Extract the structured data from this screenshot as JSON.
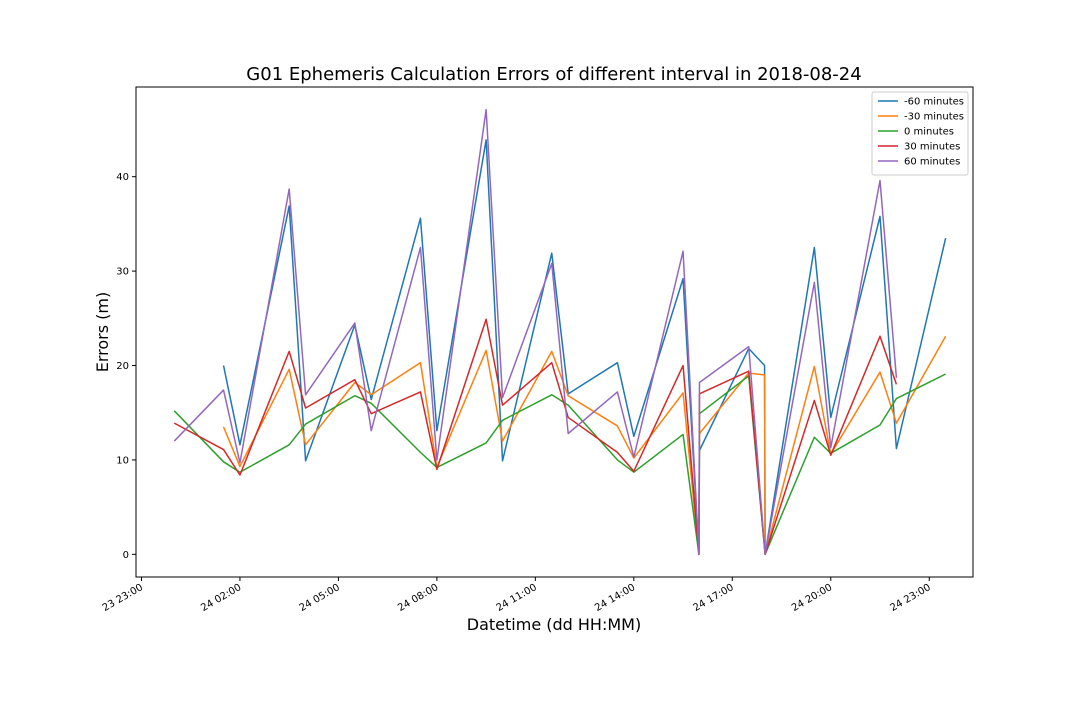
{
  "chart_data": {
    "type": "line",
    "title": "G01 Ephemeris Calculation Errors of different interval in 2018-08-24",
    "xlabel": "Datetime (dd HH:MM)",
    "ylabel": "Errors (m)",
    "x_ticks": [
      "23 23:00",
      "24 02:00",
      "24 05:00",
      "24 08:00",
      "24 11:00",
      "24 14:00",
      "24 17:00",
      "24 20:00",
      "24 23:00"
    ],
    "y_ticks": [
      0,
      10,
      20,
      30,
      40
    ],
    "xlim": [
      "2018-08-23 22:50",
      "2018-08-25 00:20"
    ],
    "ylim": [
      -2.4,
      49.5
    ],
    "grid": false,
    "legend_position": "top-right",
    "series": [
      {
        "name": "-60 minutes",
        "color": "#1f77b4",
        "points": [
          [
            "2018-08-24 01:30",
            20.0
          ],
          [
            "2018-08-24 02:00",
            11.6
          ],
          [
            "2018-08-24 03:30",
            36.9
          ],
          [
            "2018-08-24 04:00",
            9.9
          ],
          [
            "2018-08-24 05:30",
            24.3
          ],
          [
            "2018-08-24 06:00",
            16.4
          ],
          [
            "2018-08-24 07:30",
            35.6
          ],
          [
            "2018-08-24 08:00",
            13.1
          ],
          [
            "2018-08-24 09:30",
            43.9
          ],
          [
            "2018-08-24 10:00",
            9.9
          ],
          [
            "2018-08-24 11:30",
            31.9
          ],
          [
            "2018-08-24 12:00",
            17.0
          ],
          [
            "2018-08-24 13:30",
            20.3
          ],
          [
            "2018-08-24 14:00",
            12.5
          ],
          [
            "2018-08-24 15:30",
            29.2
          ],
          [
            "2018-08-24 15:59",
            0.0
          ],
          [
            "2018-08-24 16:00",
            11.0
          ],
          [
            "2018-08-24 17:30",
            21.8
          ],
          [
            "2018-08-24 17:59",
            20.0
          ],
          [
            "2018-08-24 18:00",
            0.0
          ],
          [
            "2018-08-24 19:30",
            32.5
          ],
          [
            "2018-08-24 20:00",
            14.5
          ],
          [
            "2018-08-24 21:30",
            35.8
          ],
          [
            "2018-08-24 22:00",
            11.2
          ],
          [
            "2018-08-24 23:30",
            33.5
          ]
        ]
      },
      {
        "name": "-30 minutes",
        "color": "#ff7f0e",
        "points": [
          [
            "2018-08-24 01:30",
            13.5
          ],
          [
            "2018-08-24 02:00",
            9.3
          ],
          [
            "2018-08-24 03:30",
            19.6
          ],
          [
            "2018-08-24 04:00",
            11.6
          ],
          [
            "2018-08-24 05:30",
            18.2
          ],
          [
            "2018-08-24 06:00",
            16.9
          ],
          [
            "2018-08-24 07:30",
            20.3
          ],
          [
            "2018-08-24 08:00",
            9.2
          ],
          [
            "2018-08-24 09:30",
            21.6
          ],
          [
            "2018-08-24 10:00",
            12.0
          ],
          [
            "2018-08-24 11:30",
            21.5
          ],
          [
            "2018-08-24 12:00",
            16.8
          ],
          [
            "2018-08-24 13:30",
            13.6
          ],
          [
            "2018-08-24 14:00",
            10.2
          ],
          [
            "2018-08-24 15:30",
            17.1
          ],
          [
            "2018-08-24 15:59",
            0.0
          ],
          [
            "2018-08-24 16:00",
            12.8
          ],
          [
            "2018-08-24 17:30",
            19.2
          ],
          [
            "2018-08-24 17:59",
            19.0
          ],
          [
            "2018-08-24 18:00",
            0.0
          ],
          [
            "2018-08-24 19:30",
            19.9
          ],
          [
            "2018-08-24 20:00",
            10.6
          ],
          [
            "2018-08-24 21:30",
            19.3
          ],
          [
            "2018-08-24 22:00",
            13.9
          ],
          [
            "2018-08-24 23:30",
            23.1
          ]
        ]
      },
      {
        "name": "0 minutes",
        "color": "#2ca02c",
        "points": [
          [
            "2018-08-24 00:00",
            15.2
          ],
          [
            "2018-08-24 01:30",
            9.8
          ],
          [
            "2018-08-24 02:00",
            8.7
          ],
          [
            "2018-08-24 03:30",
            11.6
          ],
          [
            "2018-08-24 04:00",
            13.8
          ],
          [
            "2018-08-24 05:30",
            16.8
          ],
          [
            "2018-08-24 06:00",
            16.0
          ],
          [
            "2018-08-24 07:30",
            10.8
          ],
          [
            "2018-08-24 08:00",
            9.2
          ],
          [
            "2018-08-24 09:30",
            11.8
          ],
          [
            "2018-08-24 10:00",
            14.2
          ],
          [
            "2018-08-24 11:30",
            16.9
          ],
          [
            "2018-08-24 12:00",
            15.8
          ],
          [
            "2018-08-24 13:30",
            10.0
          ],
          [
            "2018-08-24 14:00",
            8.7
          ],
          [
            "2018-08-24 15:30",
            12.7
          ],
          [
            "2018-08-24 15:59",
            0.0
          ],
          [
            "2018-08-24 16:00",
            14.9
          ],
          [
            "2018-08-24 17:30",
            18.9
          ],
          [
            "2018-08-24 18:00",
            0.0
          ],
          [
            "2018-08-24 19:30",
            12.4
          ],
          [
            "2018-08-24 20:00",
            10.7
          ],
          [
            "2018-08-24 21:30",
            13.7
          ],
          [
            "2018-08-24 22:00",
            16.5
          ],
          [
            "2018-08-24 23:30",
            19.1
          ]
        ]
      },
      {
        "name": "30 minutes",
        "color": "#d62728",
        "points": [
          [
            "2018-08-24 00:00",
            13.9
          ],
          [
            "2018-08-24 01:30",
            11.1
          ],
          [
            "2018-08-24 02:00",
            8.4
          ],
          [
            "2018-08-24 03:30",
            21.5
          ],
          [
            "2018-08-24 04:00",
            15.5
          ],
          [
            "2018-08-24 05:30",
            18.5
          ],
          [
            "2018-08-24 06:00",
            14.9
          ],
          [
            "2018-08-24 07:30",
            17.2
          ],
          [
            "2018-08-24 08:00",
            9.0
          ],
          [
            "2018-08-24 09:30",
            24.9
          ],
          [
            "2018-08-24 10:00",
            15.8
          ],
          [
            "2018-08-24 11:30",
            20.3
          ],
          [
            "2018-08-24 12:00",
            14.5
          ],
          [
            "2018-08-24 13:30",
            10.8
          ],
          [
            "2018-08-24 14:00",
            8.8
          ],
          [
            "2018-08-24 15:30",
            20.0
          ],
          [
            "2018-08-24 15:59",
            0.0
          ],
          [
            "2018-08-24 16:00",
            17.0
          ],
          [
            "2018-08-24 17:30",
            19.4
          ],
          [
            "2018-08-24 18:00",
            0.0
          ],
          [
            "2018-08-24 19:30",
            16.3
          ],
          [
            "2018-08-24 20:00",
            10.5
          ],
          [
            "2018-08-24 21:30",
            23.1
          ],
          [
            "2018-08-24 22:00",
            18.0
          ]
        ]
      },
      {
        "name": "60 minutes",
        "color": "#9467bd",
        "points": [
          [
            "2018-08-24 00:00",
            12.0
          ],
          [
            "2018-08-24 01:30",
            17.4
          ],
          [
            "2018-08-24 02:00",
            9.7
          ],
          [
            "2018-08-24 03:30",
            38.7
          ],
          [
            "2018-08-24 04:00",
            16.9
          ],
          [
            "2018-08-24 05:30",
            24.5
          ],
          [
            "2018-08-24 06:00",
            13.1
          ],
          [
            "2018-08-24 07:30",
            32.5
          ],
          [
            "2018-08-24 08:00",
            10.0
          ],
          [
            "2018-08-24 09:30",
            47.1
          ],
          [
            "2018-08-24 10:00",
            16.6
          ],
          [
            "2018-08-24 11:30",
            30.8
          ],
          [
            "2018-08-24 12:00",
            12.8
          ],
          [
            "2018-08-24 13:30",
            17.2
          ],
          [
            "2018-08-24 14:00",
            10.3
          ],
          [
            "2018-08-24 15:30",
            32.1
          ],
          [
            "2018-08-24 15:59",
            0.0
          ],
          [
            "2018-08-24 16:00",
            18.2
          ],
          [
            "2018-08-24 17:30",
            22.0
          ],
          [
            "2018-08-24 18:00",
            0.0
          ],
          [
            "2018-08-24 19:30",
            28.8
          ],
          [
            "2018-08-24 20:00",
            11.3
          ],
          [
            "2018-08-24 21:30",
            39.6
          ],
          [
            "2018-08-24 22:00",
            18.7
          ]
        ]
      }
    ]
  }
}
